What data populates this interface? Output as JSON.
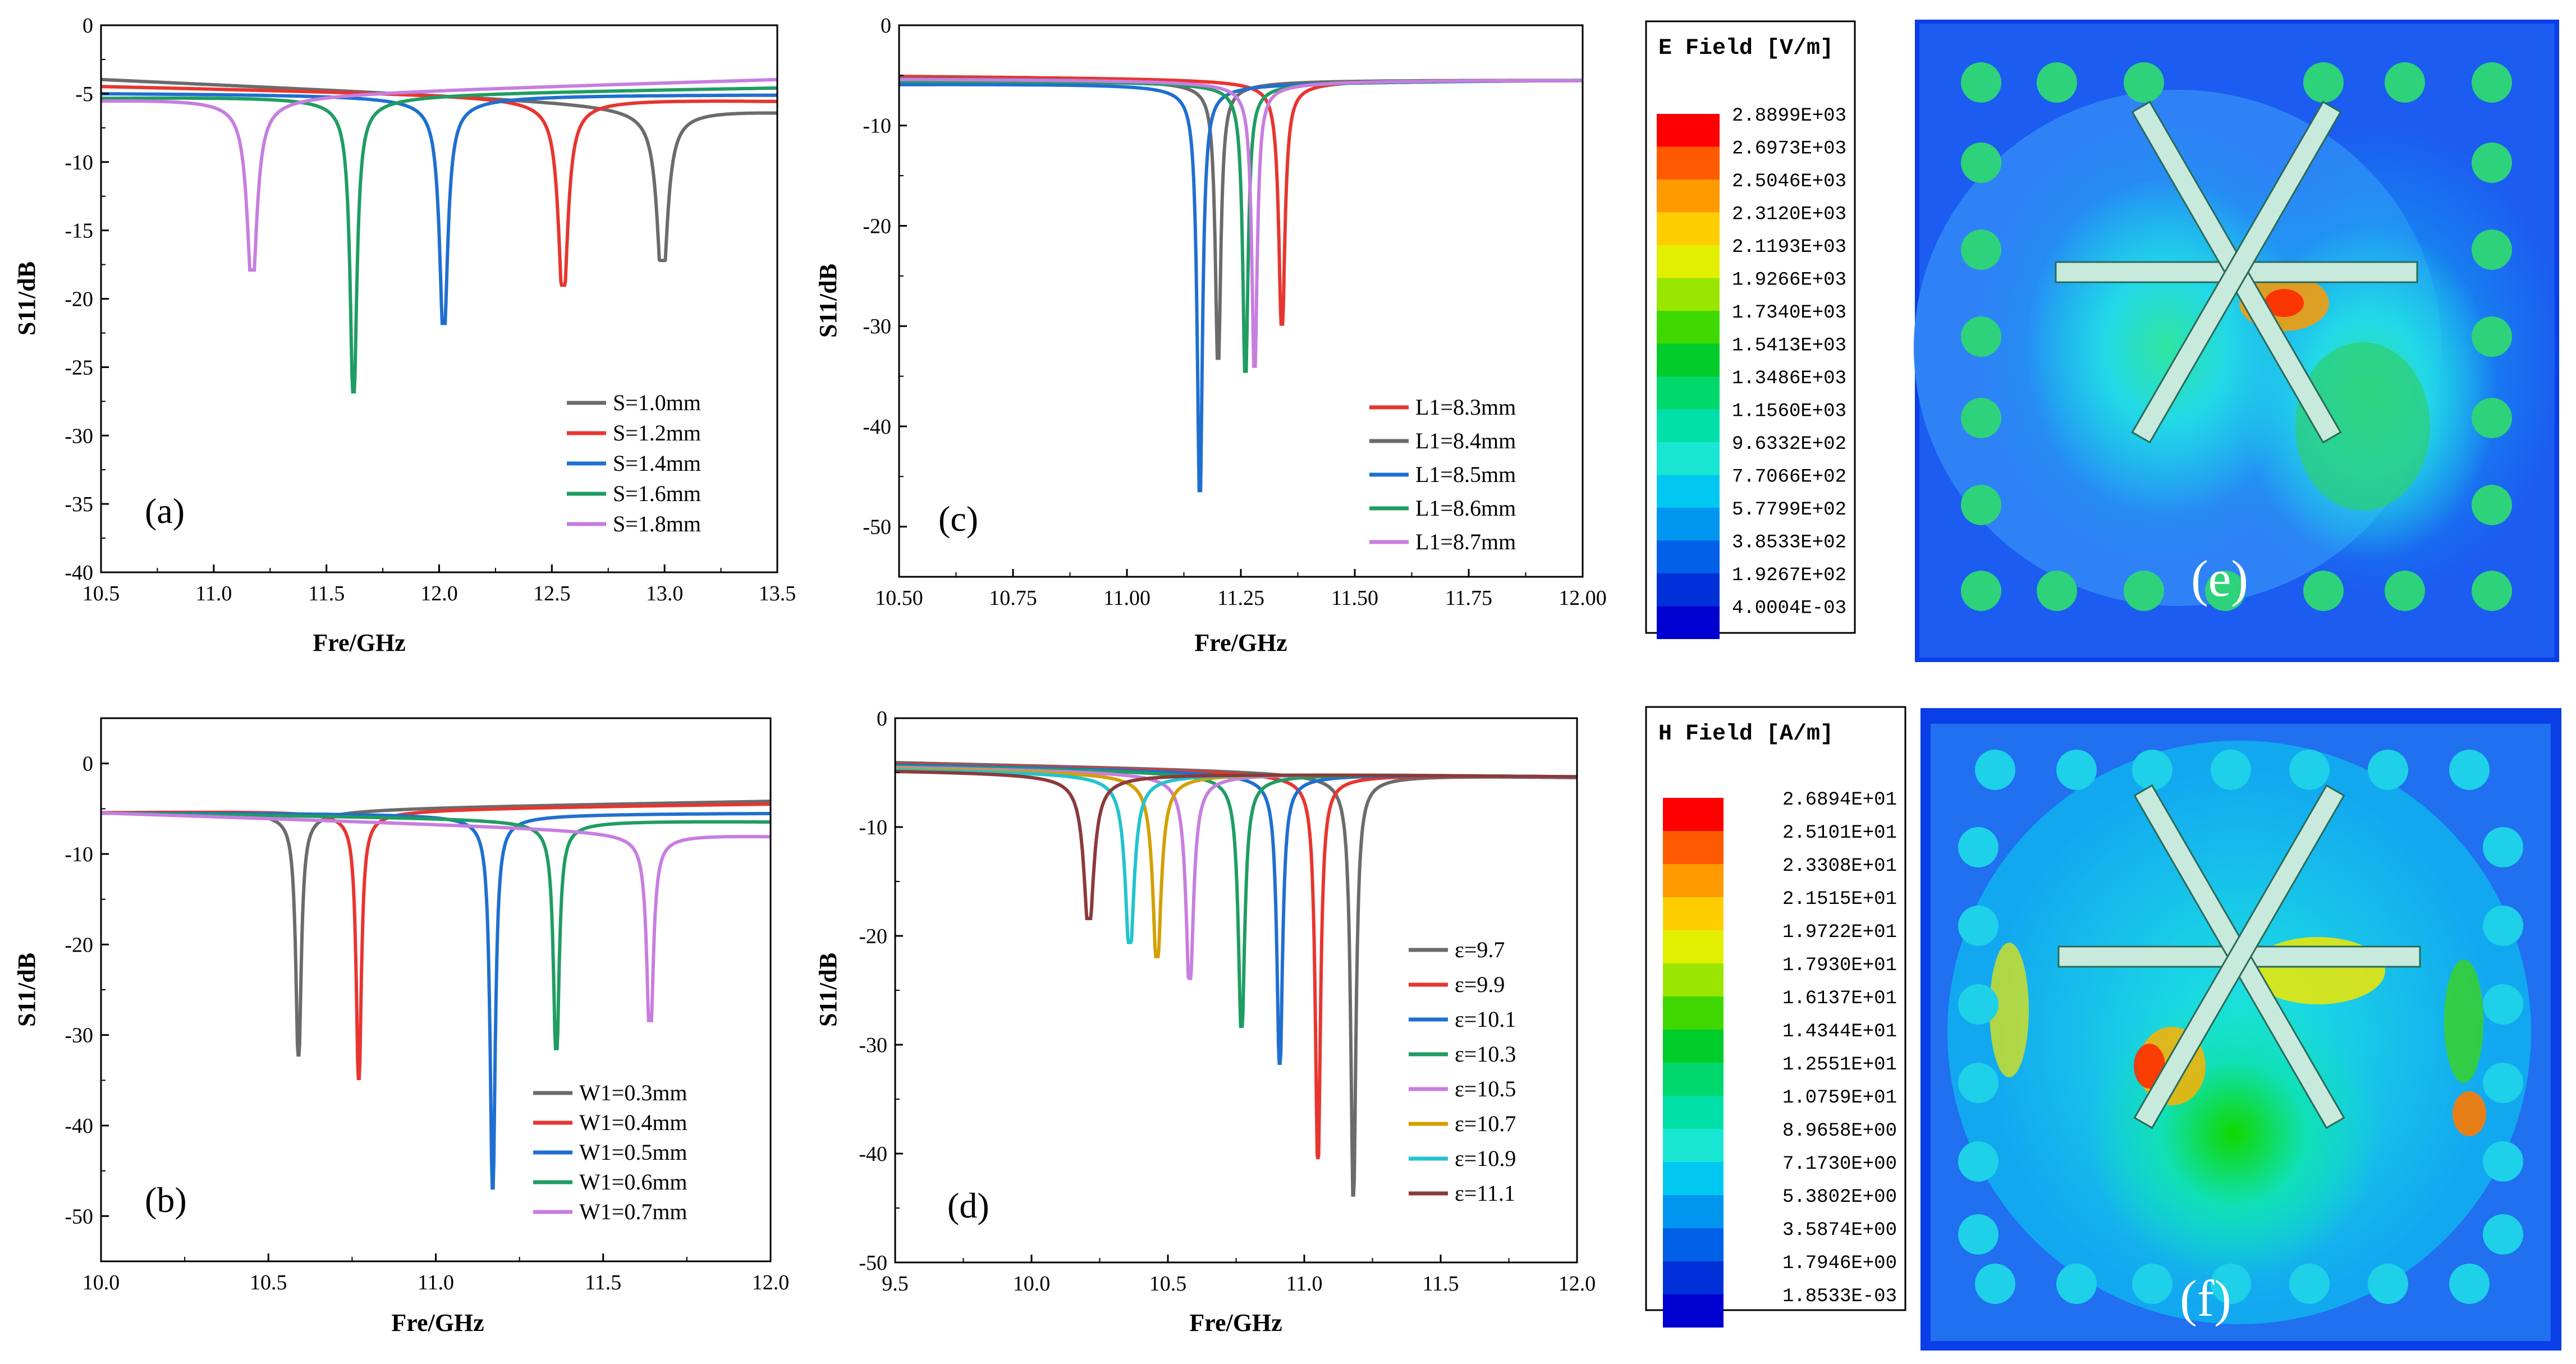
{
  "chart_data": [
    {
      "id": "a",
      "type": "line",
      "panel_label": "(a)",
      "xlabel": "Fre/GHz",
      "ylabel": "S11/dB",
      "xlim": [
        10.5,
        13.5
      ],
      "ylim": [
        -40,
        0
      ],
      "xticks": [
        10.5,
        11.0,
        11.5,
        12.0,
        12.5,
        13.0,
        13.5
      ],
      "xtick_labels": [
        "10.5",
        "11.0",
        "11.5",
        "12.0",
        "12.5",
        "13.0",
        "13.5"
      ],
      "yticks": [
        0,
        -5,
        -10,
        -15,
        -20,
        -25,
        -30,
        -35,
        -40
      ],
      "ytick_labels": [
        "0",
        "-5",
        "-10",
        "-15",
        "-20",
        "-25",
        "-30",
        "-35",
        "-40"
      ],
      "legend_position": "bottom-right",
      "series": [
        {
          "name": "S=1.0mm",
          "color": "#6b6b6b",
          "f0": 12.99,
          "min": -17.2,
          "left": -3.9,
          "right": -6.1
        },
        {
          "name": "S=1.2mm",
          "color": "#e8352f",
          "f0": 12.55,
          "min": -19.0,
          "left": -4.4,
          "right": -5.4
        },
        {
          "name": "S=1.4mm",
          "color": "#1f6fd0",
          "f0": 12.02,
          "min": -21.8,
          "left": -4.9,
          "right": -5.0
        },
        {
          "name": "S=1.6mm",
          "color": "#1f9d62",
          "f0": 11.62,
          "min": -26.8,
          "left": -5.2,
          "right": -4.5
        },
        {
          "name": "S=1.8mm",
          "color": "#c77ee0",
          "f0": 11.17,
          "min": -17.9,
          "left": -5.3,
          "right": -3.9
        }
      ]
    },
    {
      "id": "b",
      "type": "line",
      "panel_label": "(b)",
      "xlabel": "Fre/GHz",
      "ylabel": "S11/dB",
      "xlim": [
        10.0,
        12.0
      ],
      "ylim": [
        -55,
        5
      ],
      "xticks": [
        10.0,
        10.5,
        11.0,
        11.5,
        12.0
      ],
      "xtick_labels": [
        "10.0",
        "10.5",
        "11.0",
        "11.5",
        "12.0"
      ],
      "yticks": [
        0,
        -10,
        -20,
        -30,
        -40,
        -50
      ],
      "ytick_labels": [
        "0",
        "-10",
        "-20",
        "-30",
        "-40",
        "-50"
      ],
      "legend_position": "bottom-right",
      "series": [
        {
          "name": "W1=0.3mm",
          "color": "#6b6b6b",
          "f0": 10.59,
          "min": -32.2,
          "left": -5.3,
          "right": -4.1
        },
        {
          "name": "W1=0.4mm",
          "color": "#e8352f",
          "f0": 10.77,
          "min": -34.8,
          "left": -5.3,
          "right": -4.4
        },
        {
          "name": "W1=0.5mm",
          "color": "#1f6fd0",
          "f0": 11.17,
          "min": -46.9,
          "left": -5.4,
          "right": -5.4
        },
        {
          "name": "W1=0.6mm",
          "color": "#1f9d62",
          "f0": 11.36,
          "min": -31.5,
          "left": -5.4,
          "right": -6.3
        },
        {
          "name": "W1=0.7mm",
          "color": "#c77ee0",
          "f0": 11.64,
          "min": -28.4,
          "left": -5.4,
          "right": -7.8
        }
      ]
    },
    {
      "id": "c",
      "type": "line",
      "panel_label": "(c)",
      "xlabel": "Fre/GHz",
      "ylabel": "S11/dB",
      "xlim": [
        10.5,
        12.0
      ],
      "ylim": [
        -55,
        0
      ],
      "xticks": [
        10.5,
        10.75,
        11.0,
        11.25,
        11.5,
        11.75,
        12.0
      ],
      "xtick_labels": [
        "10.50",
        "10.75",
        "11.00",
        "11.25",
        "11.50",
        "11.75",
        "12.00"
      ],
      "yticks": [
        0,
        -10,
        -20,
        -30,
        -40,
        -50
      ],
      "ytick_labels": [
        "0",
        "-10",
        "-20",
        "-30",
        "-40",
        "-50"
      ],
      "legend_position": "bottom-right",
      "series": [
        {
          "name": "L1=8.3mm",
          "color": "#e8352f",
          "f0": 11.34,
          "min": -29.8,
          "left": -5.0,
          "right": -5.4
        },
        {
          "name": "L1=8.4mm",
          "color": "#6b6b6b",
          "f0": 11.2,
          "min": -33.2,
          "left": -5.2,
          "right": -5.4
        },
        {
          "name": "L1=8.5mm",
          "color": "#1f6fd0",
          "f0": 11.16,
          "min": -46.4,
          "left": -5.8,
          "right": -5.4
        },
        {
          "name": "L1=8.6mm",
          "color": "#1f9d62",
          "f0": 11.26,
          "min": -34.5,
          "left": -5.5,
          "right": -5.4
        },
        {
          "name": "L1=8.7mm",
          "color": "#c77ee0",
          "f0": 11.28,
          "min": -34.0,
          "left": -5.3,
          "right": -5.4
        }
      ]
    },
    {
      "id": "d",
      "type": "line",
      "panel_label": "(d)",
      "xlabel": "Fre/GHz",
      "ylabel": "S11/dB",
      "xlim": [
        9.5,
        12.0
      ],
      "ylim": [
        -50,
        0
      ],
      "xticks": [
        9.5,
        10.0,
        10.5,
        11.0,
        11.5,
        12.0
      ],
      "xtick_labels": [
        "9.5",
        "10.0",
        "10.5",
        "11.0",
        "11.5",
        "12.0"
      ],
      "yticks": [
        0,
        -10,
        -20,
        -30,
        -40,
        -50
      ],
      "ytick_labels": [
        "0",
        "-10",
        "-20",
        "-30",
        "-40",
        "-50"
      ],
      "legend_position": "bottom-right",
      "series": [
        {
          "name": "ε=9.7",
          "color": "#6b6b6b",
          "f0": 11.18,
          "min": -43.8,
          "left": -4.0,
          "right": -5.3
        },
        {
          "name": "ε=9.9",
          "color": "#e8352f",
          "f0": 11.05,
          "min": -40.5,
          "left": -4.1,
          "right": -5.3
        },
        {
          "name": "ε=10.1",
          "color": "#1f6fd0",
          "f0": 10.91,
          "min": -31.7,
          "left": -4.2,
          "right": -5.3
        },
        {
          "name": "ε=10.3",
          "color": "#1f9d62",
          "f0": 10.77,
          "min": -28.3,
          "left": -4.3,
          "right": -5.3
        },
        {
          "name": "ε=10.5",
          "color": "#c77ee0",
          "f0": 10.58,
          "min": -23.9,
          "left": -4.4,
          "right": -5.3
        },
        {
          "name": "ε=10.7",
          "color": "#d4a000",
          "f0": 10.46,
          "min": -21.9,
          "left": -4.5,
          "right": -5.3
        },
        {
          "name": "ε=10.9",
          "color": "#22c3cf",
          "f0": 10.36,
          "min": -20.6,
          "left": -4.6,
          "right": -5.3
        },
        {
          "name": "ε=11.1",
          "color": "#8b3a3a",
          "f0": 10.21,
          "min": -18.4,
          "left": -4.7,
          "right": -5.3
        }
      ]
    }
  ],
  "field_maps": {
    "e": {
      "label": "(e)",
      "legend_title": "E Field [V/m]",
      "values": [
        "2.8899E+03",
        "2.6973E+03",
        "2.5046E+03",
        "2.3120E+03",
        "2.1193E+03",
        "1.9266E+03",
        "1.7340E+03",
        "1.5413E+03",
        "1.3486E+03",
        "1.1560E+03",
        "9.6332E+02",
        "7.7066E+02",
        "5.7799E+02",
        "3.8533E+02",
        "1.9267E+02",
        "4.0004E-03"
      ]
    },
    "h": {
      "label": "(f)",
      "legend_title": "H Field [A/m]",
      "values": [
        "2.6894E+01",
        "2.5101E+01",
        "2.3308E+01",
        "2.1515E+01",
        "1.9722E+01",
        "1.7930E+01",
        "1.6137E+01",
        "1.4344E+01",
        "1.2551E+01",
        "1.0759E+01",
        "8.9658E+00",
        "7.1730E+00",
        "5.3802E+00",
        "3.5874E+00",
        "1.7946E+00",
        "1.8533E-03"
      ]
    },
    "scale_colors": [
      "#ff0000",
      "#ff5a00",
      "#ff9a00",
      "#ffce00",
      "#e2f000",
      "#9ae600",
      "#3fd800",
      "#00cc2a",
      "#00d86c",
      "#00e0a8",
      "#1ae6d4",
      "#00c8f0",
      "#0096f0",
      "#0060e8",
      "#0030d8",
      "#0000d0"
    ]
  }
}
